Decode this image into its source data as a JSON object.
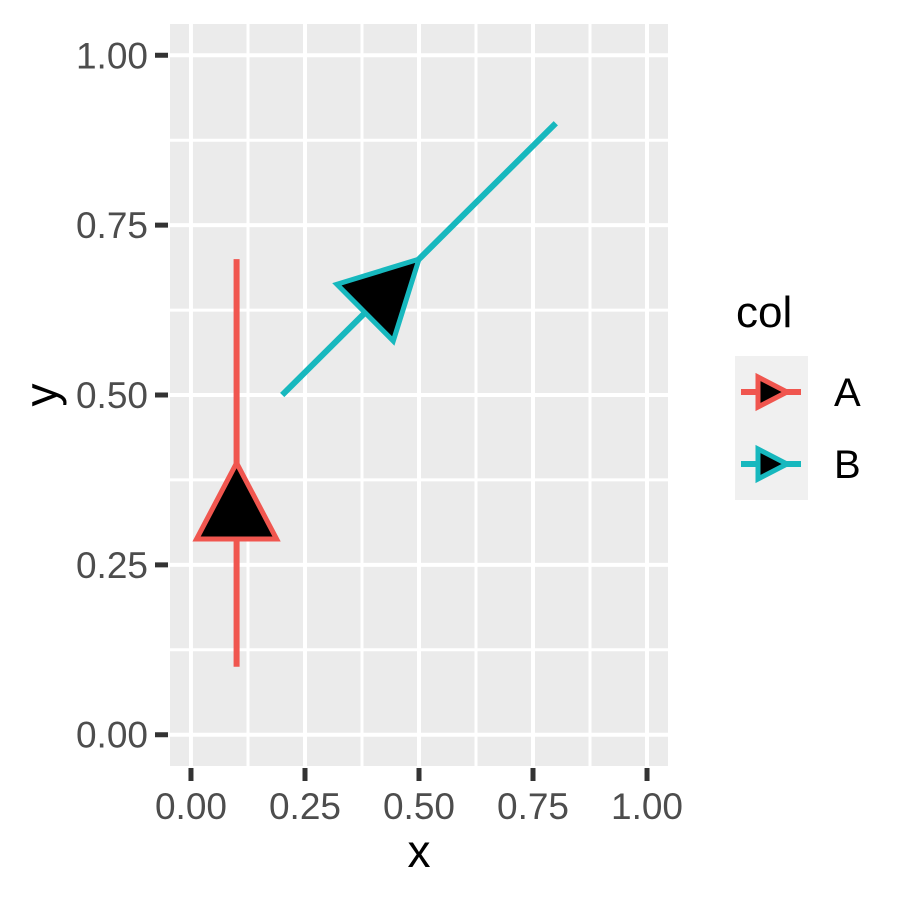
{
  "chart_data": {
    "type": "line",
    "variant": "arrow-segments (ggplot2-style geom_segment with closed black-filled arrowheads at segment midpoints)",
    "title": "",
    "xlabel": "x",
    "ylabel": "y",
    "xlim": [
      -0.046,
      1.046
    ],
    "ylim": [
      -0.046,
      1.046
    ],
    "x_ticks": {
      "values": [
        0,
        0.25,
        0.5,
        0.75,
        1
      ],
      "labels": [
        "0.00",
        "0.25",
        "0.50",
        "0.75",
        "1.00"
      ]
    },
    "y_ticks": {
      "values": [
        0,
        0.25,
        0.5,
        0.75,
        1
      ],
      "labels": [
        "0.00",
        "0.25",
        "0.50",
        "0.75",
        "1.00"
      ]
    },
    "grid": {
      "major": [
        0,
        0.25,
        0.5,
        0.75,
        1
      ],
      "minor": [
        0.125,
        0.375,
        0.625,
        0.875
      ],
      "grid_on": true
    },
    "series": [
      {
        "name": "A",
        "color": "#F0564F",
        "start": {
          "x": 0.1,
          "y": 0.1
        },
        "end": {
          "x": 0.1,
          "y": 0.7
        },
        "arrow_tip": {
          "x": 0.1,
          "y": 0.4
        }
      },
      {
        "name": "B",
        "color": "#17B8BE",
        "start": {
          "x": 0.2,
          "y": 0.5
        },
        "end": {
          "x": 0.8,
          "y": 0.9
        },
        "arrow_tip": {
          "x": 0.5,
          "y": 0.7
        }
      }
    ],
    "arrow_style": {
      "type": "closed",
      "fill": "#000000",
      "position_fraction": 0.5
    },
    "legend": {
      "title": "col",
      "position": "right",
      "entries": [
        {
          "label": "A",
          "color": "#F0564F"
        },
        {
          "label": "B",
          "color": "#17B8BE"
        }
      ]
    }
  },
  "theme": {
    "background": "#FFFFFF",
    "panel_background": "#EBEBEB",
    "grid_color": "#FFFFFF",
    "tick_mark_color": "#333333",
    "tick_label_color": "#4D4D4D",
    "axis_title_color": "#000000",
    "legend_title_color": "#000000",
    "legend_text_color": "#000000",
    "legend_key_background": "#F0F0F0",
    "arrow_fill": "#000000"
  }
}
